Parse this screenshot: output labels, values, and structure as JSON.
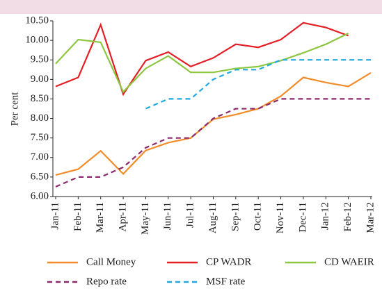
{
  "chart_data": {
    "type": "line",
    "y_label": "Per cent",
    "categories": [
      "Jan-11",
      "Feb-11",
      "Mar-11",
      "Apr-11",
      "May-11",
      "Jun-11",
      "Jul-11",
      "Aug-11",
      "Sep-11",
      "Oct-11",
      "Nov-11",
      "Dec-11",
      "Jan-12",
      "Feb-12",
      "Mar-12"
    ],
    "series": [
      {
        "name": "Call Money",
        "color": "#f28c28",
        "dash": false,
        "values": [
          6.55,
          6.7,
          7.17,
          6.58,
          7.18,
          7.38,
          7.5,
          7.98,
          8.1,
          8.25,
          8.57,
          9.05,
          8.92,
          8.82,
          9.17
        ]
      },
      {
        "name": "CP WADR",
        "color": "#e31e24",
        "dash": false,
        "values": [
          8.82,
          9.05,
          10.4,
          8.62,
          9.48,
          9.7,
          9.33,
          9.55,
          9.9,
          9.82,
          10.02,
          10.45,
          10.33,
          10.12,
          null
        ]
      },
      {
        "name": "CD WAEIR",
        "color": "#8dc63f",
        "dash": false,
        "values": [
          9.4,
          10.02,
          9.95,
          8.68,
          9.28,
          9.6,
          9.18,
          9.18,
          9.28,
          9.33,
          9.48,
          9.68,
          9.9,
          10.18,
          null
        ]
      },
      {
        "name": "Repo rate",
        "color": "#8b2b6e",
        "dash": true,
        "values": [
          6.25,
          6.5,
          6.5,
          6.75,
          7.25,
          7.5,
          7.5,
          8.0,
          8.25,
          8.25,
          8.5,
          8.5,
          8.5,
          8.5,
          8.5
        ]
      },
      {
        "name": "MSF rate",
        "color": "#1fa9e1",
        "dash": true,
        "values": [
          null,
          null,
          null,
          null,
          8.25,
          8.5,
          8.5,
          9.0,
          9.25,
          9.25,
          9.5,
          9.5,
          9.5,
          9.5,
          9.5
        ]
      }
    ],
    "ylim": [
      6.0,
      10.5
    ],
    "yticks": [
      {
        "value": 6.0,
        "label": "6.00"
      },
      {
        "value": 6.5,
        "label": "6.50"
      },
      {
        "value": 7.0,
        "label": "7.00"
      },
      {
        "value": 7.5,
        "label": "7.50"
      },
      {
        "value": 8.0,
        "label": "8.00"
      },
      {
        "value": 8.5,
        "label": "8.50"
      },
      {
        "value": 9.0,
        "label": "9.00"
      },
      {
        "value": 9.5,
        "label": "9.50"
      },
      {
        "value": 10.0,
        "label": "10.00"
      },
      {
        "value": 10.5,
        "label": "10.50"
      }
    ],
    "grid": false
  }
}
